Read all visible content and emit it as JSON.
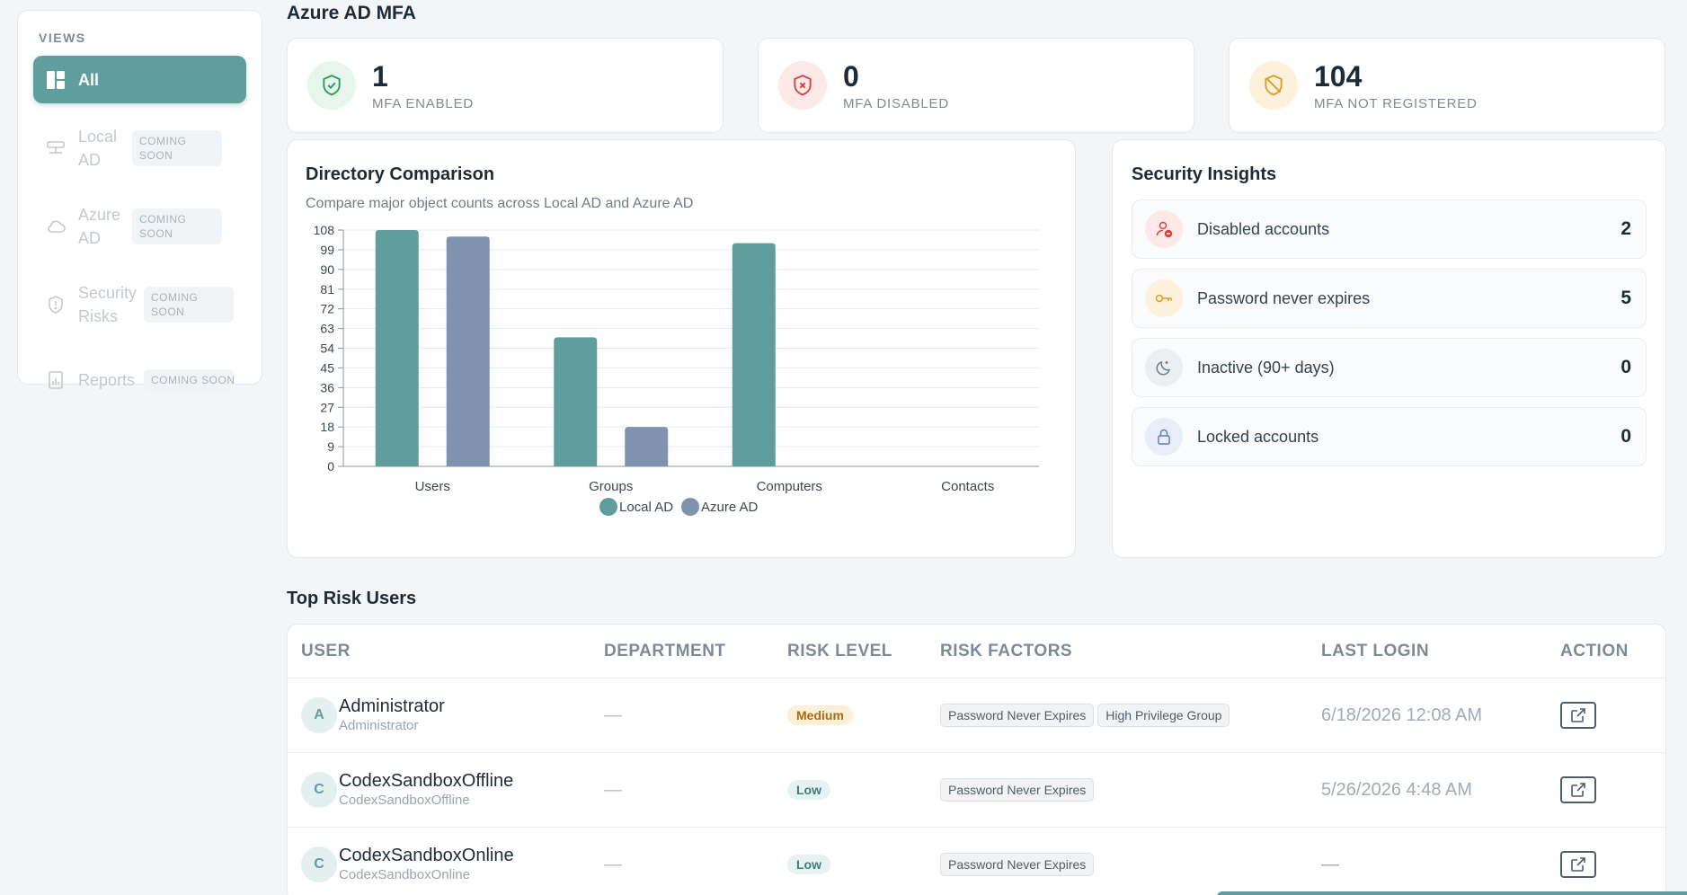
{
  "sidebar": {
    "views_label": "VIEWS",
    "items": [
      {
        "label": "All",
        "icon": "dashboard-icon"
      },
      {
        "label": "Local AD",
        "soon": "COMING SOON",
        "icon": "server-icon"
      },
      {
        "label": "Azure AD",
        "soon": "COMING SOON",
        "icon": "cloud-icon"
      },
      {
        "label": "Security Risks",
        "soon": "COMING SOON",
        "icon": "shield-icon"
      },
      {
        "label": "Reports",
        "soon": "COMING SOON",
        "icon": "report-icon"
      }
    ]
  },
  "mfa": {
    "title": "Azure AD MFA",
    "cards": [
      {
        "value": "1",
        "label": "MFA ENABLED",
        "icon": "shield-check-icon",
        "color": "#2f9e5b",
        "bg": "#e6f6ec"
      },
      {
        "value": "0",
        "label": "MFA DISABLED",
        "icon": "shield-x-icon",
        "color": "#d9443f",
        "bg": "#fde9e8"
      },
      {
        "value": "104",
        "label": "MFA NOT REGISTERED",
        "icon": "shield-off-icon",
        "color": "#d8a02b",
        "bg": "#fdf1dc"
      }
    ]
  },
  "comparison": {
    "title": "Directory Comparison",
    "subtitle": "Compare major object counts across Local AD and Azure AD"
  },
  "chart_data": {
    "type": "bar",
    "categories": [
      "Users",
      "Groups",
      "Computers",
      "Contacts"
    ],
    "series": [
      {
        "name": "Local AD",
        "values": [
          108,
          59,
          102,
          0
        ],
        "color": "#5f9e9c"
      },
      {
        "name": "Azure AD",
        "values": [
          105,
          18,
          0,
          0
        ],
        "color": "#7f92b0"
      }
    ],
    "yticks": [
      "0",
      "9",
      "18",
      "27",
      "36",
      "45",
      "54",
      "63",
      "72",
      "81",
      "90",
      "99",
      "108"
    ],
    "ylim": [
      0,
      108
    ],
    "grid": true,
    "legend": "bottom"
  },
  "insights": {
    "title": "Security Insights",
    "items": [
      {
        "label": "Disabled accounts",
        "value": "2",
        "icon": "user-minus-icon",
        "color": "#d9443f",
        "bg": "#fde9e8"
      },
      {
        "label": "Password never expires",
        "value": "5",
        "icon": "key-icon",
        "color": "#d8a02b",
        "bg": "#fdf1dc"
      },
      {
        "label": "Inactive (90+ days)",
        "value": "0",
        "icon": "moon-icon",
        "color": "#6e7d88",
        "bg": "#eceff2"
      },
      {
        "label": "Locked accounts",
        "value": "0",
        "icon": "lock-icon",
        "color": "#5b7fc4",
        "bg": "#e7eefa"
      }
    ]
  },
  "risk_users": {
    "title": "Top Risk Users",
    "columns": [
      "USER",
      "DEPARTMENT",
      "RISK LEVEL",
      "RISK FACTORS",
      "LAST LOGIN",
      "ACTION"
    ],
    "rows": [
      {
        "initial": "A",
        "name": "Administrator",
        "sub": "Administrator",
        "dept": "—",
        "risk": "Medium",
        "factors": [
          "Password Never Expires",
          "High Privilege Group"
        ],
        "login": "6/18/2026 12:08 AM"
      },
      {
        "initial": "C",
        "name": "CodexSandboxOffline",
        "sub": "CodexSandboxOffline",
        "dept": "—",
        "risk": "Low",
        "factors": [
          "Password Never Expires"
        ],
        "login": "5/26/2026 4:48 AM"
      },
      {
        "initial": "C",
        "name": "CodexSandboxOnline",
        "sub": "CodexSandboxOnline",
        "dept": "—",
        "risk": "Low",
        "factors": [
          "Password Never Expires"
        ],
        "login": "—"
      }
    ]
  }
}
